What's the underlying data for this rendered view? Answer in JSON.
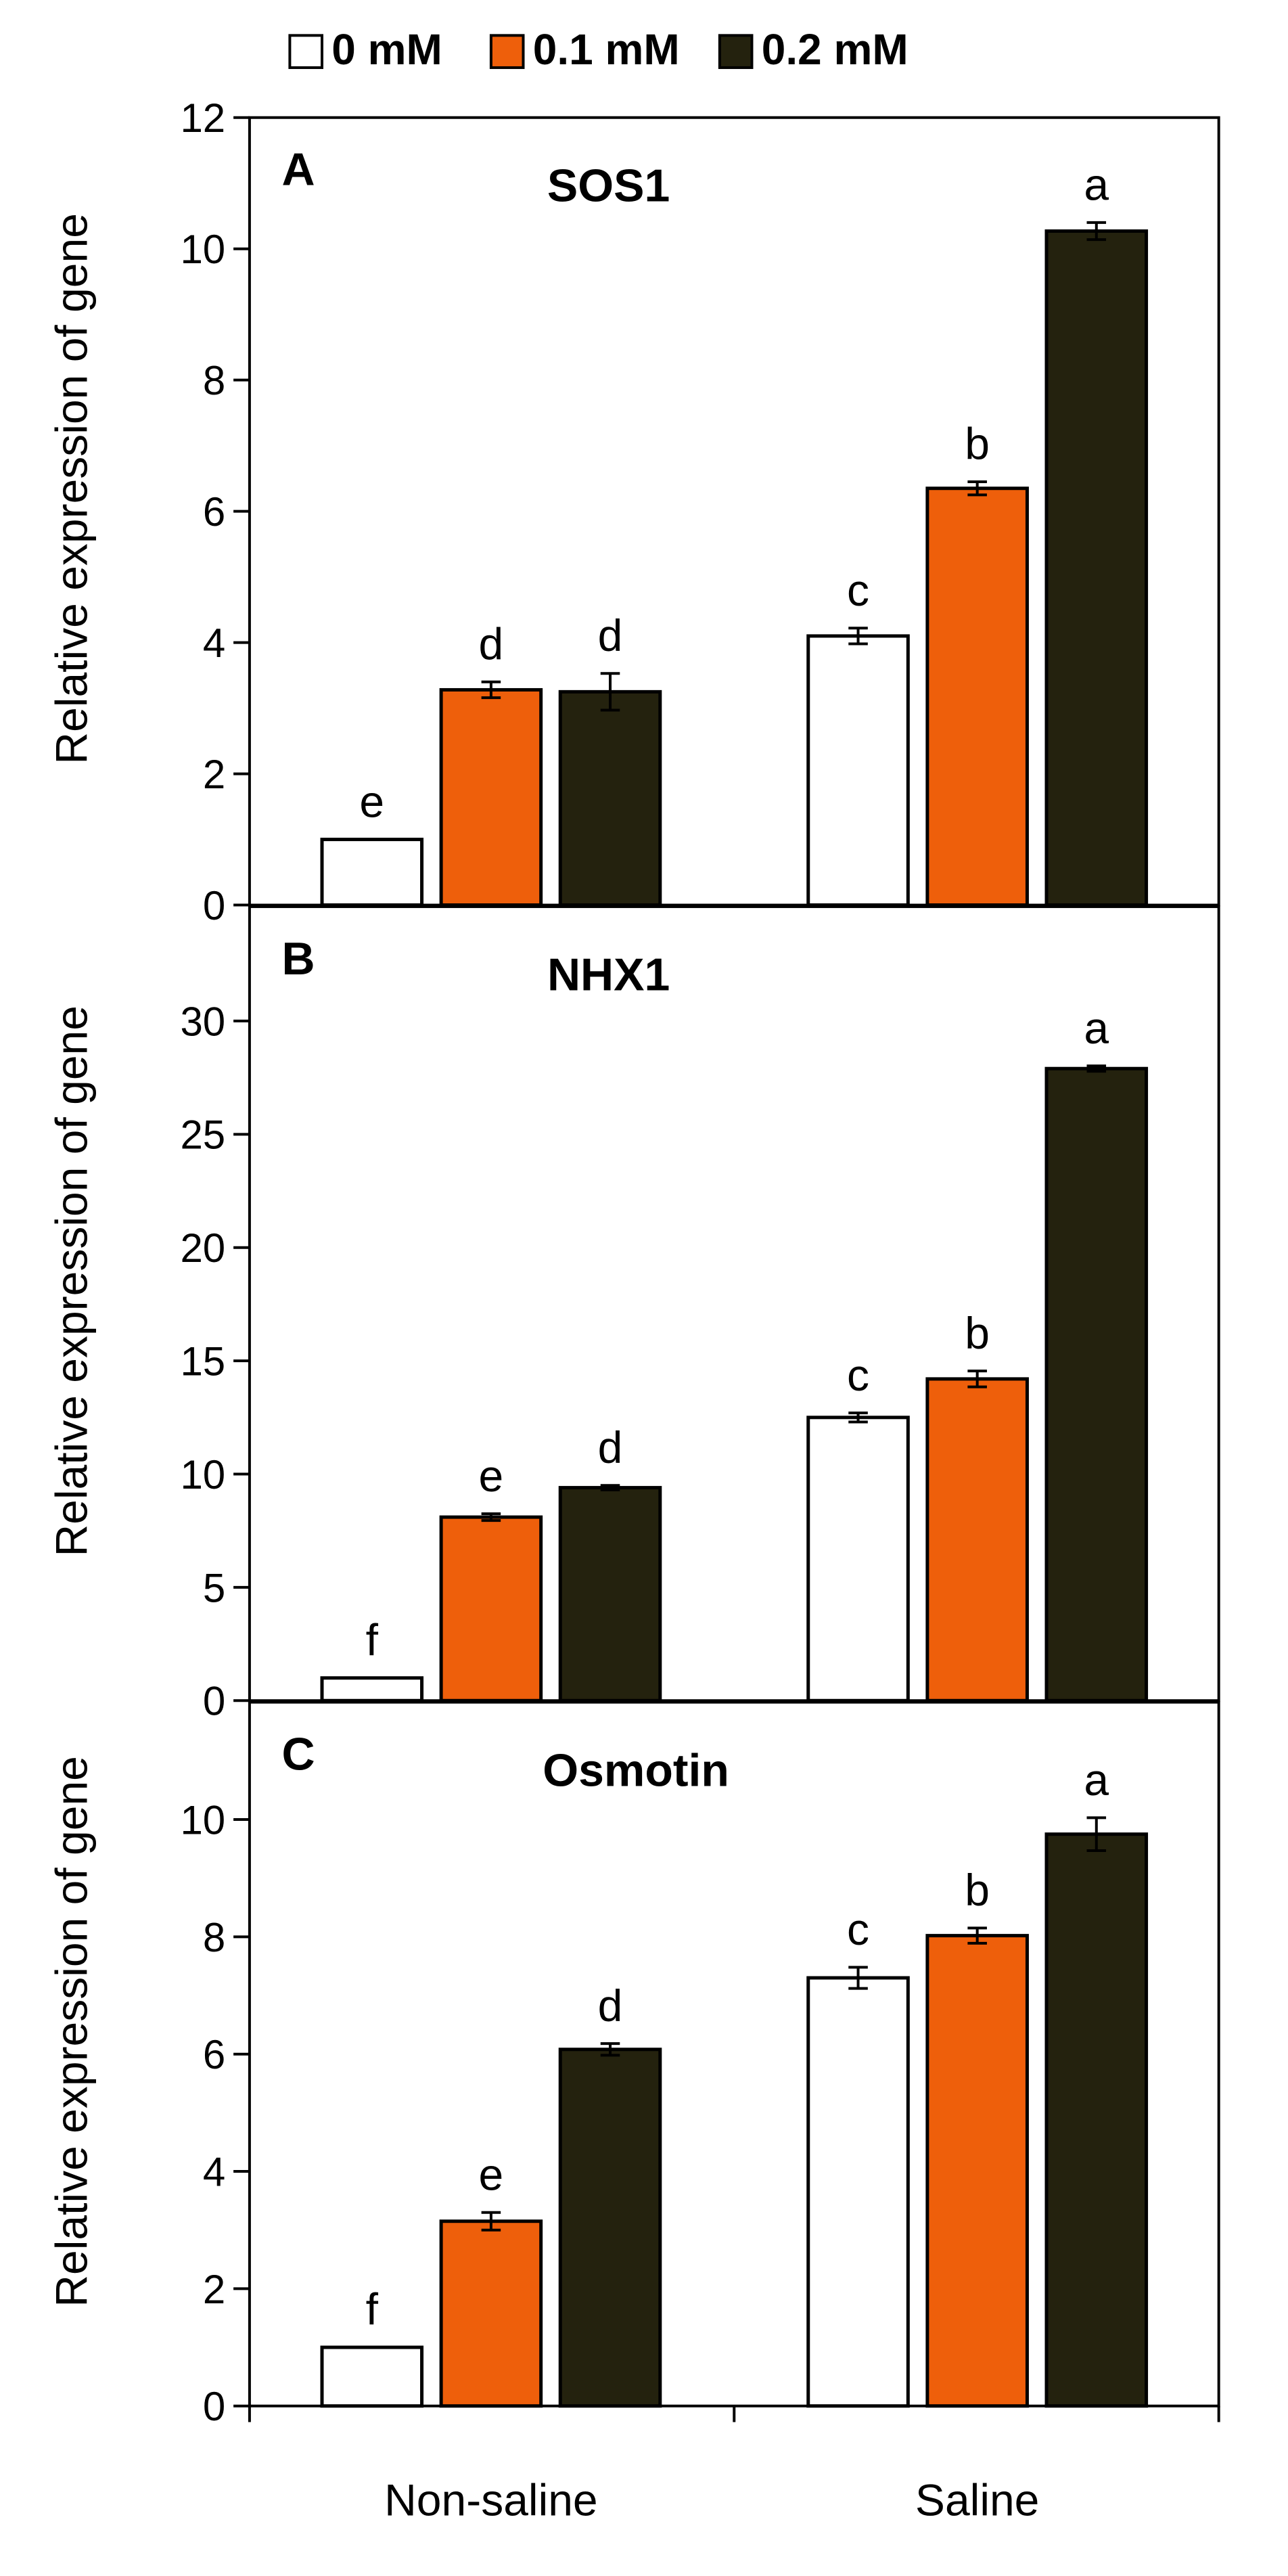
{
  "legend": {
    "items": [
      {
        "label": "0 mM",
        "color": "#ffffff"
      },
      {
        "label": "0.1 mM",
        "color": "#ee5f0b"
      },
      {
        "label": "0.2 mM",
        "color": "#24220e"
      }
    ]
  },
  "colors": {
    "series": [
      "#ffffff",
      "#ee5f0b",
      "#24220e"
    ],
    "outline": "#000000"
  },
  "chart_data": [
    {
      "type": "bar",
      "panel_letter": "A",
      "title": "SOS1",
      "ylabel": "Relative expression of gene",
      "xlabel": "",
      "categories": [
        "Non-saline",
        "Saline"
      ],
      "ylim": [
        0,
        12
      ],
      "yticks": [
        0,
        2,
        4,
        6,
        8,
        10,
        12
      ],
      "series": [
        {
          "name": "0 mM",
          "values": [
            1.0,
            4.1
          ],
          "errors": [
            0.0,
            0.12
          ],
          "letters": [
            "e",
            "c"
          ]
        },
        {
          "name": "0.1 mM",
          "values": [
            3.28,
            6.35
          ],
          "errors": [
            0.12,
            0.1
          ],
          "letters": [
            "d",
            "b"
          ]
        },
        {
          "name": "0.2 mM",
          "values": [
            3.25,
            10.27
          ],
          "errors": [
            0.28,
            0.13
          ],
          "letters": [
            "d",
            "a"
          ]
        }
      ]
    },
    {
      "type": "bar",
      "panel_letter": "B",
      "title": "NHX1",
      "ylabel": "Relative expression of gene",
      "xlabel": "",
      "categories": [
        "Non-saline",
        "Saline"
      ],
      "ylim": [
        0,
        35
      ],
      "yticks": [
        0,
        5,
        10,
        15,
        20,
        25,
        30
      ],
      "series": [
        {
          "name": "0 mM",
          "values": [
            1.0,
            12.5
          ],
          "errors": [
            0.0,
            0.2
          ],
          "letters": [
            "f",
            "c"
          ]
        },
        {
          "name": "0.1 mM",
          "values": [
            8.1,
            14.2
          ],
          "errors": [
            0.15,
            0.35
          ],
          "letters": [
            "e",
            "b"
          ]
        },
        {
          "name": "0.2 mM",
          "values": [
            9.4,
            27.9
          ],
          "errors": [
            0.1,
            0.12
          ],
          "letters": [
            "d",
            "a"
          ]
        }
      ]
    },
    {
      "type": "bar",
      "panel_letter": "C",
      "title": "Osmotin",
      "ylabel": "Relative expression of gene",
      "xlabel": "",
      "categories": [
        "Non-saline",
        "Saline"
      ],
      "ylim": [
        0,
        12
      ],
      "yticks": [
        0,
        2,
        4,
        6,
        8,
        10
      ],
      "series": [
        {
          "name": "0 mM",
          "values": [
            1.0,
            7.3
          ],
          "errors": [
            0.0,
            0.18
          ],
          "letters": [
            "f",
            "c"
          ]
        },
        {
          "name": "0.1 mM",
          "values": [
            3.15,
            8.02
          ],
          "errors": [
            0.15,
            0.13
          ],
          "letters": [
            "e",
            "b"
          ]
        },
        {
          "name": "0.2 mM",
          "values": [
            6.08,
            9.75
          ],
          "errors": [
            0.1,
            0.28
          ],
          "letters": [
            "d",
            "a"
          ]
        }
      ]
    }
  ]
}
